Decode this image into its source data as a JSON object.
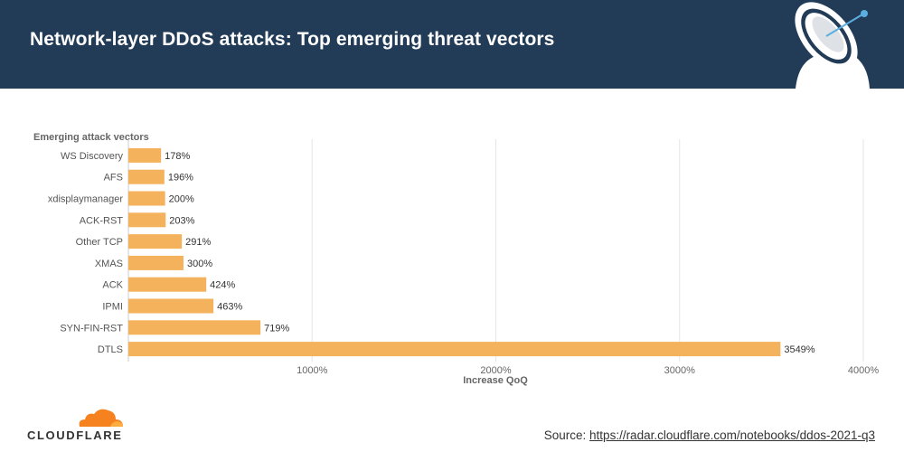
{
  "header": {
    "title": "Network-layer DDoS attacks: Top emerging threat vectors",
    "colors": {
      "background": "#223b56",
      "text": "#ffffff"
    }
  },
  "decor": {
    "icon": "satellite-dish-icon"
  },
  "chart_data": {
    "type": "bar",
    "orientation": "horizontal",
    "title": "",
    "ylabel": "Emerging attack vectors",
    "xlabel": "Increase QoQ",
    "categories": [
      "WS Discovery",
      "AFS",
      "xdisplaymanager",
      "ACK-RST",
      "Other TCP",
      "XMAS",
      "ACK",
      "IPMI",
      "SYN-FIN-RST",
      "DTLS"
    ],
    "values": [
      178,
      196,
      200,
      203,
      291,
      300,
      424,
      463,
      719,
      3549
    ],
    "value_labels": [
      "178%",
      "196%",
      "200%",
      "203%",
      "291%",
      "300%",
      "424%",
      "463%",
      "719%",
      "3549%"
    ],
    "xlim": [
      0,
      4000
    ],
    "xticks": [
      1000,
      2000,
      3000,
      4000
    ],
    "xtick_labels": [
      "1000%",
      "2000%",
      "3000%",
      "4000%"
    ],
    "grid": true,
    "bar_color": "#f5b25c"
  },
  "footer": {
    "brand": "CLOUDFLARE",
    "brand_color": "#f6821f",
    "source_prefix": "Source:",
    "source_url": "https://radar.cloudflare.com/notebooks/ddos-2021-q3"
  }
}
